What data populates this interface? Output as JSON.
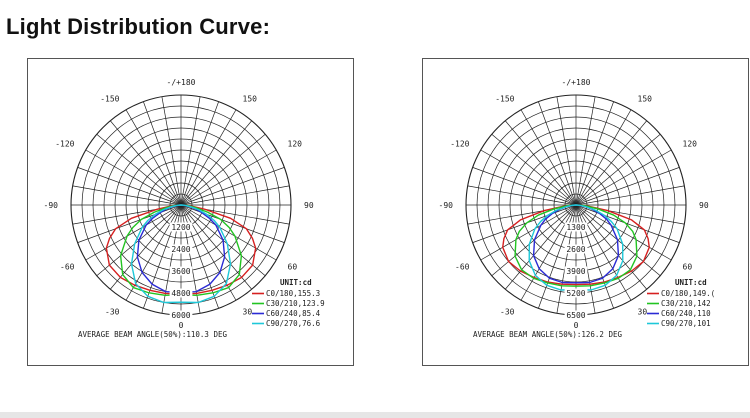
{
  "title": "Light Distribution Curve:",
  "colors": {
    "c0": "#d62020",
    "c30": "#22c422",
    "c60": "#2a2ad4",
    "c90": "#1ec8d8",
    "grid": "#222222"
  },
  "chart_data": [
    {
      "type": "polar",
      "angle_labels": [
        "-/+180",
        "-150",
        "150",
        "-120",
        "120",
        "-90",
        "90",
        "-60",
        "60",
        "-30",
        "30",
        "0"
      ],
      "ring_labels": [
        "1200",
        "2400",
        "3600",
        "4800",
        "6000"
      ],
      "r_max": 6000,
      "unit": "UNIT:cd",
      "legend": [
        {
          "label": "C0/180,155.3",
          "color": "#d62020"
        },
        {
          "label": "C30/210,123.9",
          "color": "#22c422"
        },
        {
          "label": "C60/240,85.4",
          "color": "#2a2ad4"
        },
        {
          "label": "C90/270,76.6",
          "color": "#1ec8d8"
        }
      ],
      "beam_angle_text": "AVERAGE BEAM ANGLE(50%):110.3 DEG",
      "series": [
        {
          "key": "c0",
          "values": [
            [
              0,
              4850
            ],
            [
              10,
              4900
            ],
            [
              20,
              4950
            ],
            [
              30,
              5050
            ],
            [
              40,
              5150
            ],
            [
              50,
              5100
            ],
            [
              60,
              4700
            ],
            [
              65,
              4300
            ],
            [
              70,
              3800
            ],
            [
              75,
              2800
            ],
            [
              80,
              1300
            ],
            [
              85,
              500
            ],
            [
              90,
              0
            ]
          ]
        },
        {
          "key": "c30",
          "values": [
            [
              0,
              4900
            ],
            [
              10,
              5000
            ],
            [
              20,
              5100
            ],
            [
              30,
              5200
            ],
            [
              40,
              4950
            ],
            [
              50,
              4300
            ],
            [
              60,
              3400
            ],
            [
              65,
              2900
            ],
            [
              70,
              2300
            ],
            [
              75,
              1500
            ],
            [
              80,
              800
            ],
            [
              85,
              350
            ],
            [
              90,
              0
            ]
          ]
        },
        {
          "key": "c60",
          "values": [
            [
              0,
              4750
            ],
            [
              10,
              4800
            ],
            [
              20,
              4600
            ],
            [
              30,
              4250
            ],
            [
              40,
              3700
            ],
            [
              50,
              3000
            ],
            [
              60,
              2200
            ],
            [
              65,
              1700
            ],
            [
              70,
              1200
            ],
            [
              75,
              800
            ],
            [
              80,
              400
            ],
            [
              85,
              150
            ],
            [
              90,
              0
            ]
          ]
        },
        {
          "key": "c90",
          "values": [
            [
              0,
              5300
            ],
            [
              10,
              5400
            ],
            [
              20,
              5300
            ],
            [
              30,
              4950
            ],
            [
              40,
              4200
            ],
            [
              50,
              3300
            ],
            [
              60,
              2450
            ],
            [
              65,
              2000
            ],
            [
              70,
              1500
            ],
            [
              75,
              1000
            ],
            [
              80,
              500
            ],
            [
              85,
              200
            ],
            [
              90,
              0
            ]
          ]
        }
      ]
    },
    {
      "type": "polar",
      "angle_labels": [
        "-/+180",
        "-150",
        "150",
        "-120",
        "120",
        "-90",
        "90",
        "-60",
        "60",
        "-30",
        "30",
        "0"
      ],
      "ring_labels": [
        "1300",
        "2600",
        "3900",
        "5200",
        "6500"
      ],
      "r_max": 6500,
      "unit": "UNIT:cd",
      "legend": [
        {
          "label": "C0/180,149.(",
          "color": "#d62020"
        },
        {
          "label": "C30/210,142",
          "color": "#22c422"
        },
        {
          "label": "C60/240,110",
          "color": "#2a2ad4"
        },
        {
          "label": "C90/270,101",
          "color": "#1ec8d8"
        }
      ],
      "beam_angle_text": "AVERAGE BEAM ANGLE(50%):126.2 DEG",
      "series": [
        {
          "key": "c0",
          "values": [
            [
              0,
              4700
            ],
            [
              10,
              4750
            ],
            [
              20,
              4850
            ],
            [
              30,
              4950
            ],
            [
              40,
              5100
            ],
            [
              50,
              5200
            ],
            [
              60,
              5000
            ],
            [
              65,
              4700
            ],
            [
              70,
              4300
            ],
            [
              75,
              3400
            ],
            [
              80,
              1900
            ],
            [
              85,
              700
            ],
            [
              90,
              0
            ]
          ]
        },
        {
          "key": "c30",
          "values": [
            [
              0,
              4800
            ],
            [
              10,
              4850
            ],
            [
              20,
              4900
            ],
            [
              30,
              5000
            ],
            [
              40,
              5000
            ],
            [
              50,
              4700
            ],
            [
              60,
              4100
            ],
            [
              65,
              3700
            ],
            [
              70,
              3100
            ],
            [
              75,
              2300
            ],
            [
              80,
              1300
            ],
            [
              85,
              500
            ],
            [
              90,
              0
            ]
          ]
        },
        {
          "key": "c60",
          "values": [
            [
              0,
              4600
            ],
            [
              10,
              4650
            ],
            [
              20,
              4600
            ],
            [
              30,
              4350
            ],
            [
              40,
              3900
            ],
            [
              50,
              3200
            ],
            [
              60,
              2400
            ],
            [
              65,
              2000
            ],
            [
              70,
              1500
            ],
            [
              75,
              1000
            ],
            [
              80,
              550
            ],
            [
              85,
              200
            ],
            [
              90,
              0
            ]
          ]
        },
        {
          "key": "c90",
          "values": [
            [
              0,
              5000
            ],
            [
              10,
              5100
            ],
            [
              20,
              5050
            ],
            [
              30,
              4800
            ],
            [
              40,
              4300
            ],
            [
              50,
              3600
            ],
            [
              60,
              2800
            ],
            [
              65,
              2300
            ],
            [
              70,
              1800
            ],
            [
              75,
              1200
            ],
            [
              80,
              600
            ],
            [
              85,
              250
            ],
            [
              90,
              0
            ]
          ]
        }
      ]
    }
  ]
}
